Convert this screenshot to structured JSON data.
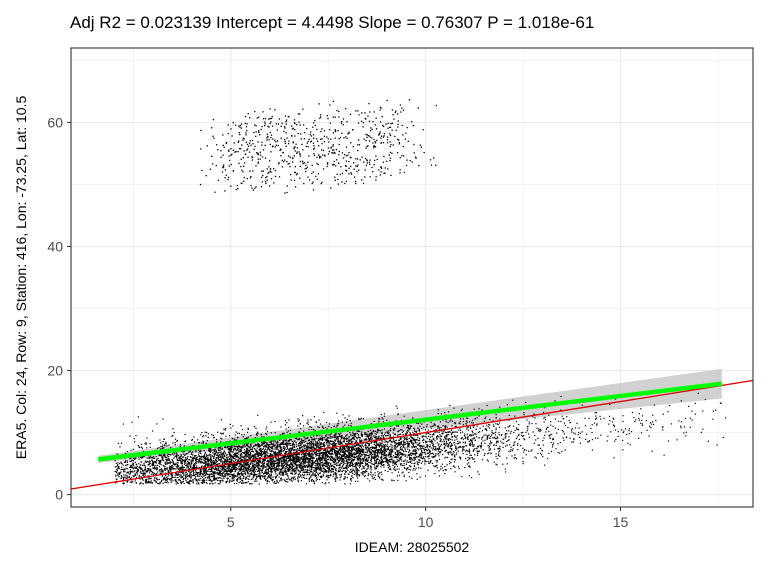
{
  "chart_data": {
    "type": "scatter",
    "title": "Adj R2 =  0.023139 Intercept = 4.4498  Slope = 0.76307  P = 1.018e-61",
    "xlabel": "IDEAM: 28025502",
    "ylabel": "ERA5.  Col: 24, Row: 9, Station: 416, Lon: -73.25, Lat: 10.5",
    "xlim": [
      0.9,
      18.4
    ],
    "ylim": [
      -2,
      72
    ],
    "x_ticks": [
      5,
      10,
      15
    ],
    "y_ticks": [
      0,
      20,
      40,
      60
    ],
    "grid": true,
    "legend": "none",
    "regression": {
      "intercept": 4.4498,
      "slope": 0.76307,
      "x_range": [
        1.6,
        17.6
      ]
    },
    "identity_line": {
      "intercept": 0,
      "slope": 1
    },
    "clusters": [
      {
        "name": "",
        "x_center": 7.2,
        "x_spread": 3.1,
        "y_center": 56,
        "y_spread": 7.5,
        "count": 700
      },
      {
        "name": "",
        "x_center": 6.5,
        "x_spread": 2.8,
        "y_center": 6.5,
        "y_spread": 2.6,
        "count": 8000
      }
    ],
    "colors": {
      "points": "#000000",
      "fit_line": "#00ff00",
      "confidence_band": "#bebebe",
      "identity_line": "#dd0000",
      "panel_border": "#333333",
      "grid": "#ebebeb"
    }
  }
}
